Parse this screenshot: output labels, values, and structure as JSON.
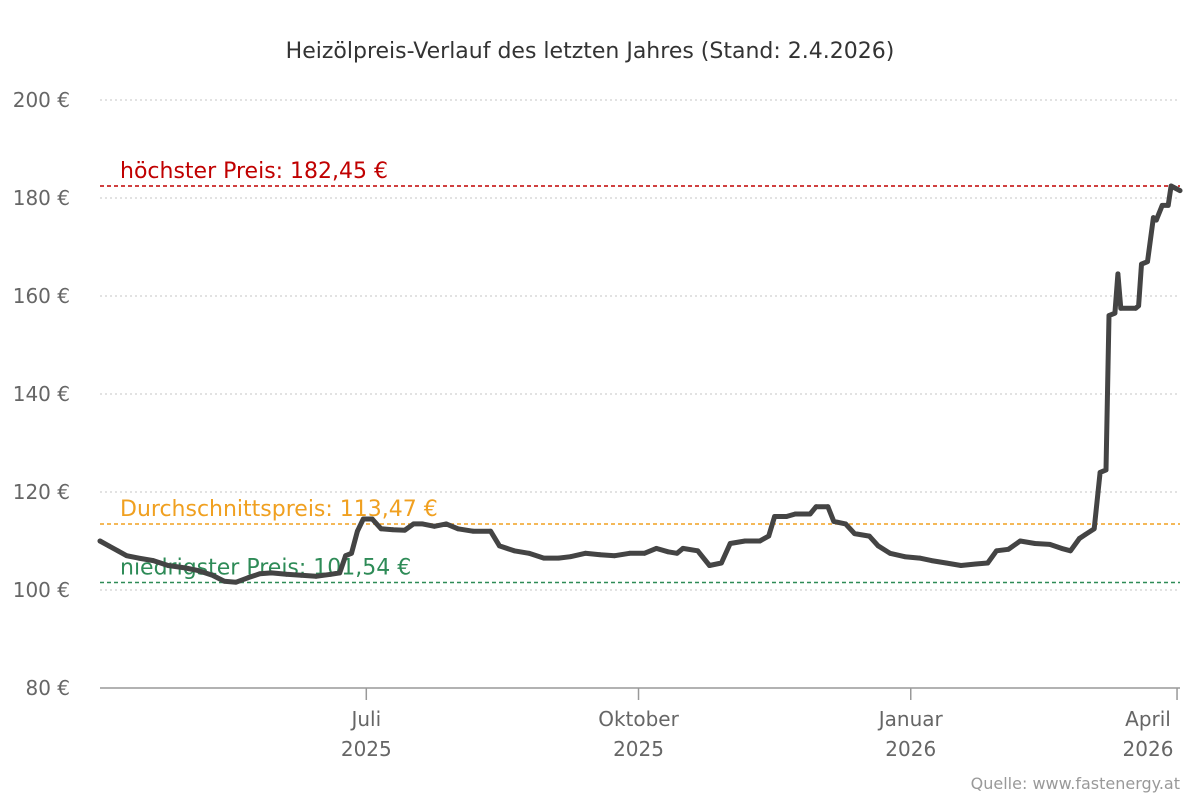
{
  "chart_data": {
    "type": "line",
    "title": "Heizölpreis-Verlauf des letzten Jahres (Stand: 2.4.2026)",
    "xlabel": "",
    "ylabel": "",
    "ylim": [
      80,
      200
    ],
    "xlim": [
      "2025-04-02",
      "2026-04-02"
    ],
    "yticks": [
      {
        "value": 80,
        "label": "80 €"
      },
      {
        "value": 100,
        "label": "100 €"
      },
      {
        "value": 120,
        "label": "120 €"
      },
      {
        "value": 140,
        "label": "140 €"
      },
      {
        "value": 160,
        "label": "160 €"
      },
      {
        "value": 180,
        "label": "180 €"
      },
      {
        "value": 200,
        "label": "200 €"
      }
    ],
    "xticks": [
      {
        "date": "2025-07-01",
        "month": "Juli",
        "year": "2025"
      },
      {
        "date": "2025-10-01",
        "month": "Oktober",
        "year": "2025"
      },
      {
        "date": "2026-01-01",
        "month": "Januar",
        "year": "2026"
      },
      {
        "date": "2026-04-01",
        "month": "April",
        "year": "2026"
      }
    ],
    "grid": true,
    "reference_lines": [
      {
        "label": "höchster Preis: 182,45 €",
        "value": 182.45,
        "color": "#c00000"
      },
      {
        "label": "Durchschnittspreis: 113,47 €",
        "value": 113.47,
        "color": "#f0a020"
      },
      {
        "label": "niedrigster Preis: 101,54 €",
        "value": 101.54,
        "color": "#2e8b57"
      }
    ],
    "series": [
      {
        "color": "#444444",
        "points": [
          [
            "2025-04-02",
            110.0
          ],
          [
            "2025-04-05",
            109.0
          ],
          [
            "2025-04-08",
            108.0
          ],
          [
            "2025-04-11",
            107.0
          ],
          [
            "2025-04-15",
            106.5
          ],
          [
            "2025-04-20",
            106.0
          ],
          [
            "2025-04-25",
            105.0
          ],
          [
            "2025-05-01",
            104.5
          ],
          [
            "2025-05-05",
            104.0
          ],
          [
            "2025-05-10",
            103.0
          ],
          [
            "2025-05-14",
            101.8
          ],
          [
            "2025-05-18",
            101.6
          ],
          [
            "2025-05-22",
            102.5
          ],
          [
            "2025-05-26",
            103.3
          ],
          [
            "2025-05-30",
            103.5
          ],
          [
            "2025-06-04",
            103.2
          ],
          [
            "2025-06-09",
            103.0
          ],
          [
            "2025-06-14",
            102.8
          ],
          [
            "2025-06-19",
            103.2
          ],
          [
            "2025-06-22",
            103.5
          ],
          [
            "2025-06-24",
            107.0
          ],
          [
            "2025-06-26",
            107.5
          ],
          [
            "2025-06-28",
            112.0
          ],
          [
            "2025-06-30",
            114.5
          ],
          [
            "2025-07-03",
            114.5
          ],
          [
            "2025-07-06",
            112.5
          ],
          [
            "2025-07-10",
            112.3
          ],
          [
            "2025-07-14",
            112.2
          ],
          [
            "2025-07-17",
            113.5
          ],
          [
            "2025-07-20",
            113.5
          ],
          [
            "2025-07-24",
            113.0
          ],
          [
            "2025-07-28",
            113.5
          ],
          [
            "2025-08-01",
            112.5
          ],
          [
            "2025-08-06",
            112.0
          ],
          [
            "2025-08-12",
            112.0
          ],
          [
            "2025-08-15",
            109.0
          ],
          [
            "2025-08-20",
            108.0
          ],
          [
            "2025-08-25",
            107.5
          ],
          [
            "2025-08-30",
            106.5
          ],
          [
            "2025-09-04",
            106.5
          ],
          [
            "2025-09-08",
            106.8
          ],
          [
            "2025-09-13",
            107.5
          ],
          [
            "2025-09-18",
            107.2
          ],
          [
            "2025-09-23",
            107.0
          ],
          [
            "2025-09-28",
            107.5
          ],
          [
            "2025-10-03",
            107.5
          ],
          [
            "2025-10-07",
            108.5
          ],
          [
            "2025-10-11",
            107.8
          ],
          [
            "2025-10-14",
            107.5
          ],
          [
            "2025-10-16",
            108.5
          ],
          [
            "2025-10-21",
            108.0
          ],
          [
            "2025-10-25",
            105.0
          ],
          [
            "2025-10-29",
            105.5
          ],
          [
            "2025-11-01",
            109.5
          ],
          [
            "2025-11-06",
            110.0
          ],
          [
            "2025-11-11",
            110.0
          ],
          [
            "2025-11-14",
            111.0
          ],
          [
            "2025-11-16",
            115.0
          ],
          [
            "2025-11-20",
            115.0
          ],
          [
            "2025-11-23",
            115.5
          ],
          [
            "2025-11-28",
            115.5
          ],
          [
            "2025-11-30",
            117.0
          ],
          [
            "2025-12-04",
            117.0
          ],
          [
            "2025-12-06",
            114.0
          ],
          [
            "2025-12-10",
            113.5
          ],
          [
            "2025-12-13",
            111.5
          ],
          [
            "2025-12-18",
            111.0
          ],
          [
            "2025-12-21",
            109.0
          ],
          [
            "2025-12-25",
            107.5
          ],
          [
            "2025-12-30",
            106.8
          ],
          [
            "2026-01-04",
            106.5
          ],
          [
            "2026-01-08",
            106.0
          ],
          [
            "2026-01-13",
            105.5
          ],
          [
            "2026-01-18",
            105.0
          ],
          [
            "2026-01-23",
            105.3
          ],
          [
            "2026-01-27",
            105.5
          ],
          [
            "2026-01-30",
            108.0
          ],
          [
            "2026-02-03",
            108.3
          ],
          [
            "2026-02-07",
            110.0
          ],
          [
            "2026-02-12",
            109.5
          ],
          [
            "2026-02-17",
            109.3
          ],
          [
            "2026-02-21",
            108.5
          ],
          [
            "2026-02-24",
            108.0
          ],
          [
            "2026-02-27",
            110.5
          ],
          [
            "2026-03-01",
            111.3
          ],
          [
            "2026-03-04",
            112.5
          ],
          [
            "2026-03-06",
            124.0
          ],
          [
            "2026-03-08",
            124.5
          ],
          [
            "2026-03-09",
            156.0
          ],
          [
            "2026-03-11",
            156.5
          ],
          [
            "2026-03-12",
            164.5
          ],
          [
            "2026-03-13",
            157.5
          ],
          [
            "2026-03-18",
            157.5
          ],
          [
            "2026-03-19",
            158.0
          ],
          [
            "2026-03-20",
            166.5
          ],
          [
            "2026-03-22",
            167.0
          ],
          [
            "2026-03-24",
            176.0
          ],
          [
            "2026-03-25",
            175.5
          ],
          [
            "2026-03-27",
            178.5
          ],
          [
            "2026-03-29",
            178.5
          ],
          [
            "2026-03-30",
            182.45
          ],
          [
            "2026-04-02",
            181.5
          ]
        ]
      }
    ]
  },
  "credit": "Quelle: www.fastenergy.at"
}
